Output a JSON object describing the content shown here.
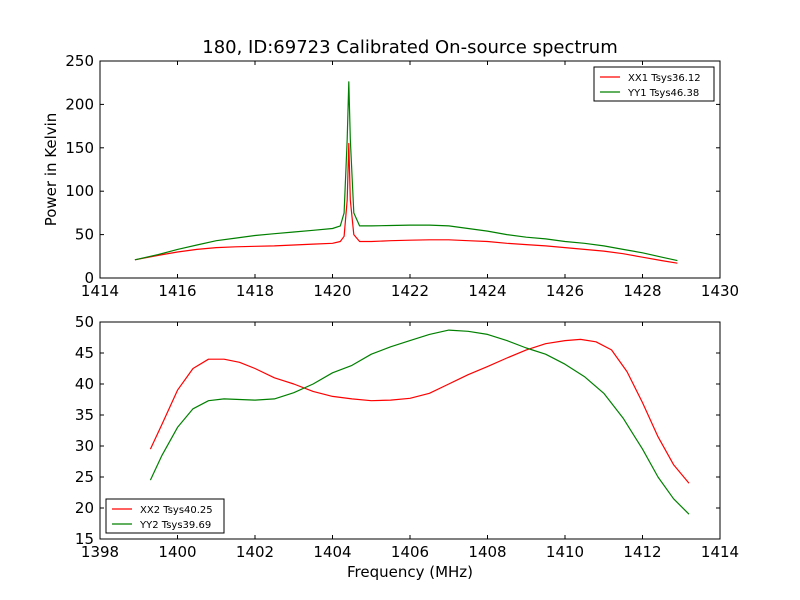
{
  "figure": {
    "title": "180, ID:69723 Calibrated On-source spectrum"
  },
  "colors": {
    "red": "#ff0000",
    "green": "#008000",
    "axes": "#000000",
    "background": "#ffffff"
  },
  "chart_data": [
    {
      "type": "line",
      "title": "180, ID:69723 Calibrated On-source spectrum",
      "xlabel": "",
      "ylabel": "Power in Kelvin",
      "xlim": [
        1414,
        1430
      ],
      "ylim": [
        0,
        250
      ],
      "xticks": [
        1414,
        1416,
        1418,
        1420,
        1422,
        1424,
        1426,
        1428,
        1430
      ],
      "yticks": [
        0,
        50,
        100,
        150,
        200,
        250
      ],
      "grid": false,
      "legend_position": "top-right",
      "series": [
        {
          "name": "XX1 Tsys36.12",
          "color": "#ff0000",
          "x": [
            1414.9,
            1415.5,
            1416.0,
            1416.5,
            1417.0,
            1417.5,
            1418.0,
            1418.5,
            1419.0,
            1419.5,
            1420.0,
            1420.2,
            1420.3,
            1420.38,
            1420.42,
            1420.46,
            1420.55,
            1420.7,
            1421.0,
            1421.5,
            1422.0,
            1422.5,
            1423.0,
            1423.5,
            1424.0,
            1424.5,
            1425.0,
            1425.5,
            1426.0,
            1426.5,
            1427.0,
            1427.5,
            1428.0,
            1428.5,
            1428.9
          ],
          "y": [
            21,
            26,
            30,
            33,
            35,
            36,
            36.5,
            37,
            38,
            39,
            40,
            42,
            48,
            90,
            155,
            90,
            50,
            42,
            42,
            43,
            43.5,
            44,
            44,
            43,
            42,
            40,
            38.5,
            37,
            35,
            33,
            31,
            28,
            24,
            20,
            17
          ]
        },
        {
          "name": "YY1 Tsys46.38",
          "color": "#008000",
          "x": [
            1414.9,
            1415.5,
            1416.0,
            1416.5,
            1417.0,
            1417.5,
            1418.0,
            1418.5,
            1419.0,
            1419.5,
            1420.0,
            1420.2,
            1420.3,
            1420.38,
            1420.42,
            1420.46,
            1420.55,
            1420.7,
            1421.0,
            1421.5,
            1422.0,
            1422.5,
            1423.0,
            1423.5,
            1424.0,
            1424.5,
            1425.0,
            1425.5,
            1426.0,
            1426.5,
            1427.0,
            1427.5,
            1428.0,
            1428.5,
            1428.9
          ],
          "y": [
            21,
            27,
            33,
            38,
            43,
            46,
            49,
            51,
            53,
            55,
            57,
            60,
            75,
            160,
            226,
            160,
            75,
            60,
            60,
            60.5,
            61,
            61,
            60,
            57,
            54,
            50,
            47,
            45,
            42,
            40,
            37,
            33,
            29,
            24,
            20
          ]
        }
      ]
    },
    {
      "type": "line",
      "title": "",
      "xlabel": "Frequency (MHz)",
      "ylabel": "",
      "xlim": [
        1398,
        1414
      ],
      "ylim": [
        15,
        50
      ],
      "xticks": [
        1398,
        1400,
        1402,
        1404,
        1406,
        1408,
        1410,
        1412,
        1414
      ],
      "yticks": [
        15,
        20,
        25,
        30,
        35,
        40,
        45,
        50
      ],
      "grid": false,
      "legend_position": "bottom-left",
      "series": [
        {
          "name": "XX2 Tsys40.25",
          "color": "#ff0000",
          "x": [
            1399.3,
            1399.6,
            1400.0,
            1400.4,
            1400.8,
            1401.2,
            1401.6,
            1402.0,
            1402.5,
            1403.0,
            1403.5,
            1404.0,
            1404.5,
            1405.0,
            1405.5,
            1406.0,
            1406.5,
            1407.0,
            1407.5,
            1408.0,
            1408.5,
            1409.0,
            1409.5,
            1410.0,
            1410.4,
            1410.8,
            1411.2,
            1411.6,
            1412.0,
            1412.4,
            1412.8,
            1413.2
          ],
          "y": [
            29.5,
            33.5,
            39,
            42.5,
            44,
            44,
            43.5,
            42.5,
            41,
            40,
            38.8,
            38,
            37.6,
            37.3,
            37.4,
            37.7,
            38.5,
            40,
            41.5,
            42.8,
            44.2,
            45.5,
            46.5,
            47,
            47.2,
            46.8,
            45.5,
            42,
            37,
            31.5,
            27,
            24
          ]
        },
        {
          "name": "YY2 Tsys39.69",
          "color": "#008000",
          "x": [
            1399.3,
            1399.6,
            1400.0,
            1400.4,
            1400.8,
            1401.2,
            1401.6,
            1402.0,
            1402.5,
            1403.0,
            1403.5,
            1404.0,
            1404.5,
            1405.0,
            1405.5,
            1406.0,
            1406.5,
            1407.0,
            1407.5,
            1408.0,
            1408.5,
            1409.0,
            1409.5,
            1410.0,
            1410.5,
            1411.0,
            1411.5,
            1412.0,
            1412.4,
            1412.8,
            1413.2
          ],
          "y": [
            24.5,
            28.5,
            33,
            36,
            37.3,
            37.6,
            37.5,
            37.4,
            37.6,
            38.6,
            40,
            41.8,
            43,
            44.8,
            46,
            47,
            48,
            48.7,
            48.5,
            48,
            47,
            45.8,
            44.8,
            43.2,
            41.2,
            38.5,
            34.5,
            29.5,
            25,
            21.5,
            19
          ]
        }
      ]
    }
  ]
}
